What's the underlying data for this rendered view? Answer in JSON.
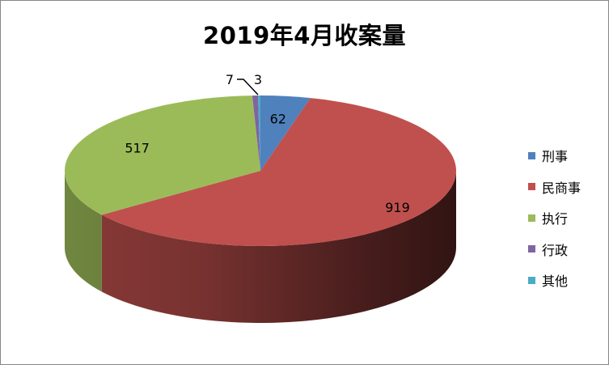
{
  "chart_data": {
    "type": "pie",
    "style": "3d",
    "title": "2019年4月收案量",
    "categories": [
      "刑事",
      "民商事",
      "执行",
      "行政",
      "其他"
    ],
    "values": [
      62,
      919,
      517,
      7,
      3
    ],
    "colors": [
      "#4F81BD",
      "#C0504D",
      "#9BBB59",
      "#8064A2",
      "#4BACC6"
    ],
    "data_labels": [
      "62",
      "919",
      "517",
      "7",
      "3"
    ],
    "legend_position": "right"
  }
}
